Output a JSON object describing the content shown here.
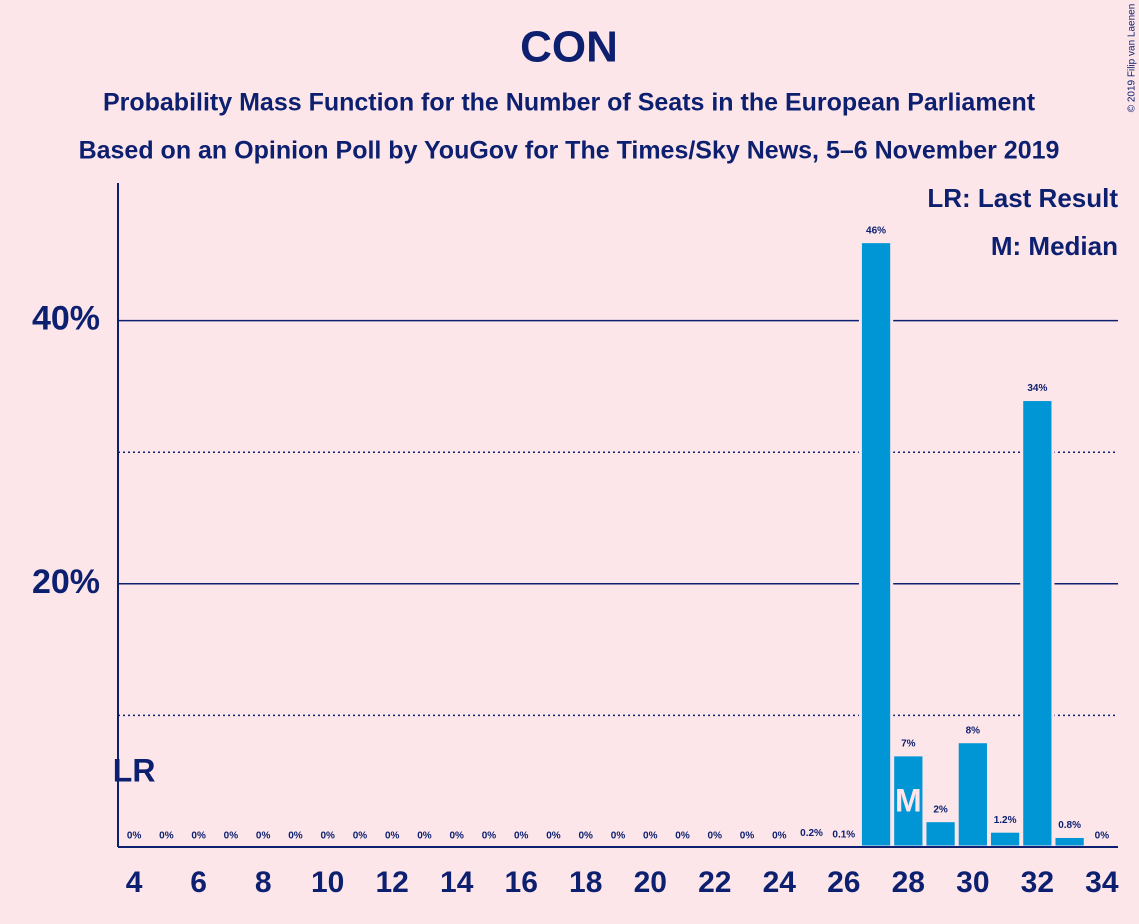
{
  "chart_data": {
    "type": "bar",
    "title": "CON",
    "subtitle": [
      "Probability Mass Function for the Number of Seats in the European Parliament",
      "Based on an Opinion Poll by YouGov for The Times/Sky News, 5–6 November 2019"
    ],
    "copyright": "© 2019 Filip van Laenen",
    "legend": [
      "LR: Last Result",
      "M: Median"
    ],
    "markers": [
      {
        "label": "LR",
        "x": 4
      },
      {
        "label": "M",
        "x": 28
      }
    ],
    "x": [
      4,
      5,
      6,
      7,
      8,
      9,
      10,
      11,
      12,
      13,
      14,
      15,
      16,
      17,
      18,
      19,
      20,
      21,
      22,
      23,
      24,
      25,
      26,
      27,
      28,
      29,
      30,
      31,
      32,
      33,
      34
    ],
    "values": [
      0,
      0,
      0,
      0,
      0,
      0,
      0,
      0,
      0,
      0,
      0,
      0,
      0,
      0,
      0,
      0,
      0,
      0,
      0,
      0,
      0,
      0.2,
      0.1,
      46,
      7,
      2,
      8,
      1.2,
      34,
      0.8,
      0
    ],
    "value_labels": [
      "0%",
      "0%",
      "0%",
      "0%",
      "0%",
      "0%",
      "0%",
      "0%",
      "0%",
      "0%",
      "0%",
      "0%",
      "0%",
      "0%",
      "0%",
      "0%",
      "0%",
      "0%",
      "0%",
      "0%",
      "0%",
      "0.2%",
      "0.1%",
      "46%",
      "7%",
      "2%",
      "8%",
      "1.2%",
      "34%",
      "0.8%",
      "0%"
    ],
    "color": "#0096d6",
    "xlim": [
      3.5,
      34.5
    ],
    "xticks": [
      4,
      6,
      8,
      10,
      12,
      14,
      16,
      18,
      20,
      22,
      24,
      26,
      28,
      30,
      32,
      34
    ],
    "ylim": [
      0,
      50
    ],
    "yticks": [
      {
        "value": 20,
        "label": "20%"
      },
      {
        "value": 40,
        "label": "40%"
      }
    ],
    "minor_yticks": [
      10,
      30
    ],
    "grid": true
  }
}
